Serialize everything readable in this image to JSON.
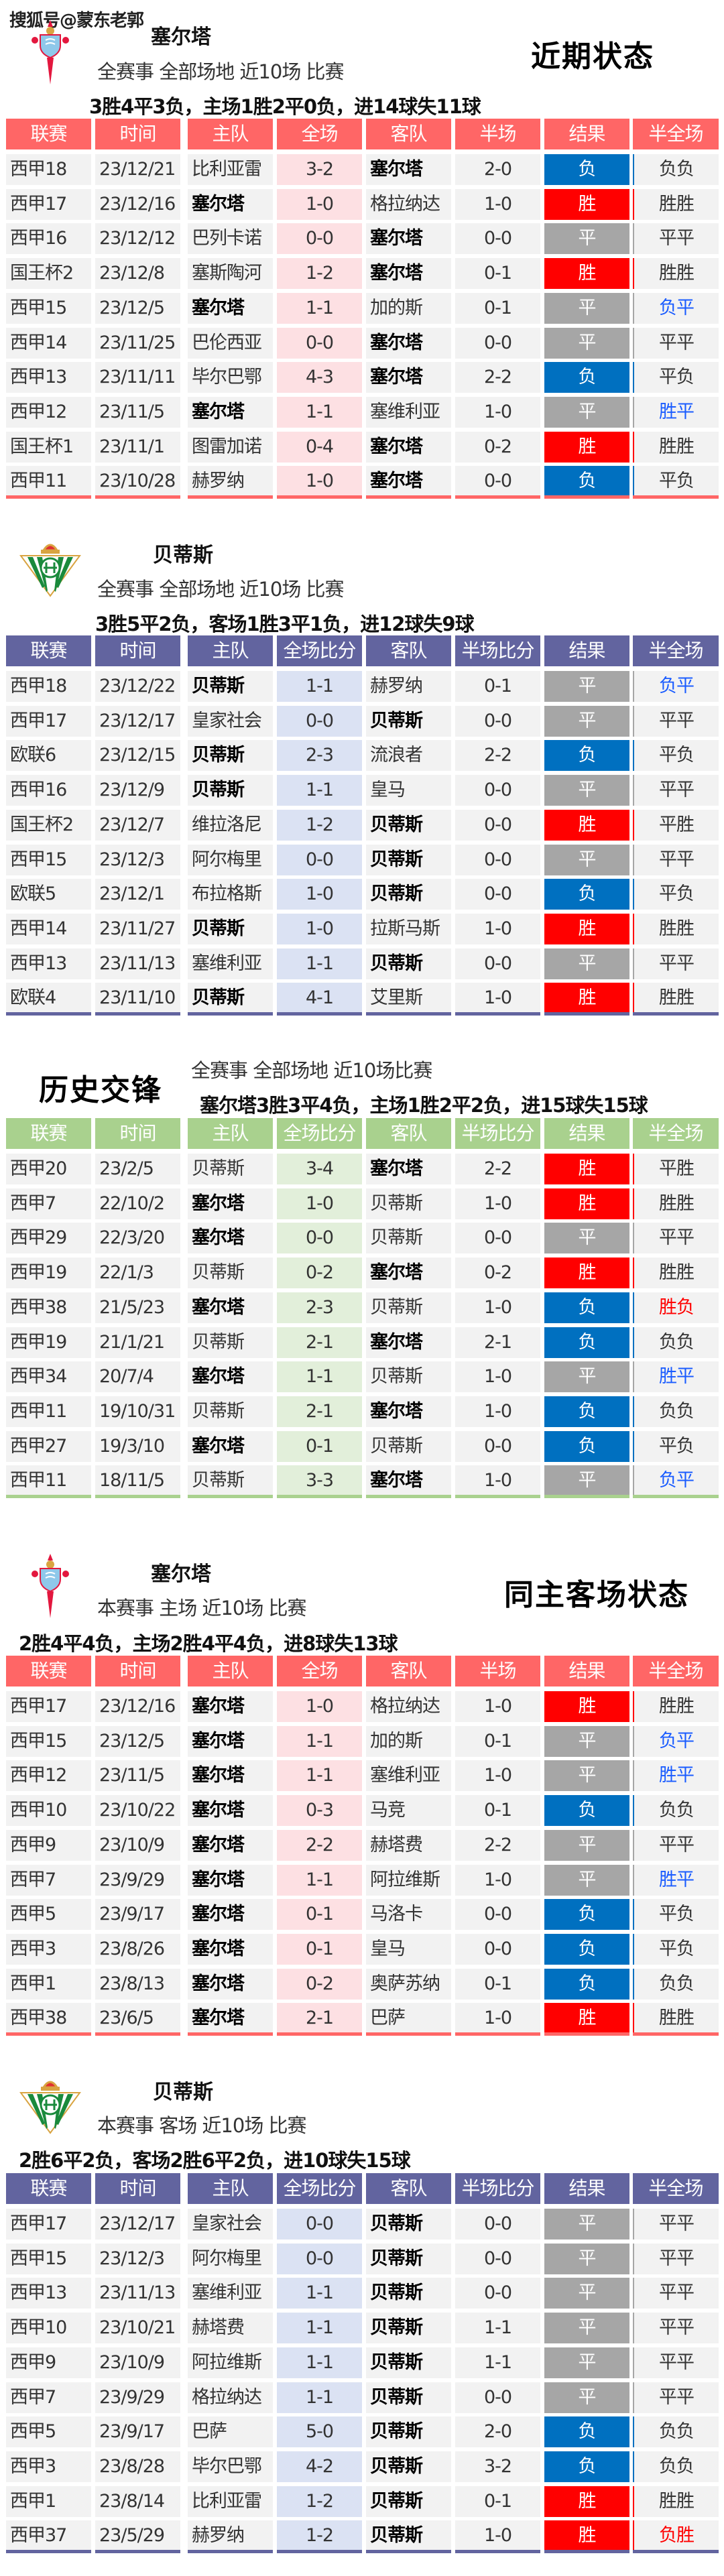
{
  "watermark": "搜狐号@蒙东老郭",
  "colors": {
    "celta_header": "#ff6666",
    "celta_score_bg": "#fde0e3",
    "betis_header": "#62649f",
    "betis_score_bg": "#dbe2f3",
    "h2h_header": "#a9d18e",
    "h2h_score_bg": "#e2efda",
    "win": "#ff0000",
    "draw": "#a6a6a6",
    "loss": "#0070c0",
    "hf_blue": "#1a5cff",
    "hf_red": "#ff0000",
    "cell_bg": "#f2f2f2"
  },
  "sections": [
    {
      "id": "celta-recent",
      "logo": "celta-crest",
      "team": "塞尔塔",
      "title": "近期状态",
      "subtitle": "全赛事  全部场地  近10场  比赛",
      "summary": "3胜4平3负，主场1胜2平0负，进14球失11球",
      "theme": "celta",
      "focus": "塞尔塔",
      "headers": [
        "联赛",
        "时间",
        "主队",
        "全场",
        "客队",
        "半场",
        "结果",
        "半全场"
      ],
      "rows": [
        [
          "西甲18",
          "23/12/21",
          "比利亚雷",
          "3-2",
          "塞尔塔",
          "2-0",
          "负",
          "负负"
        ],
        [
          "西甲17",
          "23/12/16",
          "塞尔塔",
          "1-0",
          "格拉纳达",
          "1-0",
          "胜",
          "胜胜"
        ],
        [
          "西甲16",
          "23/12/12",
          "巴列卡诺",
          "0-0",
          "塞尔塔",
          "0-0",
          "平",
          "平平"
        ],
        [
          "国王杯2",
          "23/12/8",
          "塞斯陶河",
          "1-2",
          "塞尔塔",
          "0-1",
          "胜",
          "胜胜"
        ],
        [
          "西甲15",
          "23/12/5",
          "塞尔塔",
          "1-1",
          "加的斯",
          "0-1",
          "平",
          "负平"
        ],
        [
          "西甲14",
          "23/11/25",
          "巴伦西亚",
          "0-0",
          "塞尔塔",
          "0-0",
          "平",
          "平平"
        ],
        [
          "西甲13",
          "23/11/11",
          "毕尔巴鄂",
          "4-3",
          "塞尔塔",
          "2-2",
          "负",
          "平负"
        ],
        [
          "西甲12",
          "23/11/5",
          "塞尔塔",
          "1-1",
          "塞维利亚",
          "1-0",
          "平",
          "胜平"
        ],
        [
          "国王杯1",
          "23/11/1",
          "图雷加诺",
          "0-4",
          "塞尔塔",
          "0-2",
          "胜",
          "胜胜"
        ],
        [
          "西甲11",
          "23/10/28",
          "赫罗纳",
          "1-0",
          "塞尔塔",
          "0-0",
          "负",
          "平负"
        ]
      ]
    },
    {
      "id": "betis-recent",
      "logo": "betis-crest",
      "team": "贝蒂斯",
      "title": "",
      "subtitle": "全赛事  全部场地  近10场  比赛",
      "summary": "3胜5平2负，客场1胜3平1负，进12球失9球",
      "theme": "betis",
      "focus": "贝蒂斯",
      "headers": [
        "联赛",
        "时间",
        "主队",
        "全场比分",
        "客队",
        "半场比分",
        "结果",
        "半全场"
      ],
      "rows": [
        [
          "西甲18",
          "23/12/22",
          "贝蒂斯",
          "1-1",
          "赫罗纳",
          "0-1",
          "平",
          "负平"
        ],
        [
          "西甲17",
          "23/12/17",
          "皇家社会",
          "0-0",
          "贝蒂斯",
          "0-0",
          "平",
          "平平"
        ],
        [
          "欧联6",
          "23/12/15",
          "贝蒂斯",
          "2-3",
          "流浪者",
          "2-2",
          "负",
          "平负"
        ],
        [
          "西甲16",
          "23/12/9",
          "贝蒂斯",
          "1-1",
          "皇马",
          "0-0",
          "平",
          "平平"
        ],
        [
          "国王杯2",
          "23/12/7",
          "维拉洛尼",
          "1-2",
          "贝蒂斯",
          "0-0",
          "胜",
          "平胜"
        ],
        [
          "西甲15",
          "23/12/3",
          "阿尔梅里",
          "0-0",
          "贝蒂斯",
          "0-0",
          "平",
          "平平"
        ],
        [
          "欧联5",
          "23/12/1",
          "布拉格斯",
          "1-0",
          "贝蒂斯",
          "0-0",
          "负",
          "平负"
        ],
        [
          "西甲14",
          "23/11/27",
          "贝蒂斯",
          "1-0",
          "拉斯马斯",
          "1-0",
          "胜",
          "胜胜"
        ],
        [
          "西甲13",
          "23/11/13",
          "塞维利亚",
          "1-1",
          "贝蒂斯",
          "0-0",
          "平",
          "平平"
        ],
        [
          "欧联4",
          "23/11/10",
          "贝蒂斯",
          "4-1",
          "艾里斯",
          "1-0",
          "胜",
          "胜胜"
        ]
      ]
    },
    {
      "id": "head-to-head",
      "logo": "",
      "team": "",
      "title": "历史交锋",
      "subtitle": "全赛事  全部场地  近10场比赛",
      "summary": "塞尔塔3胜3平4负，主场1胜2平2负，进15球失15球",
      "theme": "h2h",
      "focus": "塞尔塔",
      "headers": [
        "联赛",
        "时间",
        "主队",
        "全场比分",
        "客队",
        "半场比分",
        "结果",
        "半全场"
      ],
      "rows": [
        [
          "西甲20",
          "23/2/5",
          "贝蒂斯",
          "3-4",
          "塞尔塔",
          "2-2",
          "胜",
          "平胜"
        ],
        [
          "西甲7",
          "22/10/2",
          "塞尔塔",
          "1-0",
          "贝蒂斯",
          "1-0",
          "胜",
          "胜胜"
        ],
        [
          "西甲29",
          "22/3/20",
          "塞尔塔",
          "0-0",
          "贝蒂斯",
          "0-0",
          "平",
          "平平"
        ],
        [
          "西甲19",
          "22/1/3",
          "贝蒂斯",
          "0-2",
          "塞尔塔",
          "0-2",
          "胜",
          "胜胜"
        ],
        [
          "西甲38",
          "21/5/23",
          "塞尔塔",
          "2-3",
          "贝蒂斯",
          "1-0",
          "负",
          "胜负"
        ],
        [
          "西甲19",
          "21/1/21",
          "贝蒂斯",
          "2-1",
          "塞尔塔",
          "2-1",
          "负",
          "负负"
        ],
        [
          "西甲34",
          "20/7/4",
          "塞尔塔",
          "1-1",
          "贝蒂斯",
          "1-0",
          "平",
          "胜平"
        ],
        [
          "西甲11",
          "19/10/31",
          "贝蒂斯",
          "2-1",
          "塞尔塔",
          "1-0",
          "负",
          "负负"
        ],
        [
          "西甲27",
          "19/3/10",
          "塞尔塔",
          "0-1",
          "贝蒂斯",
          "0-0",
          "负",
          "平负"
        ],
        [
          "西甲11",
          "18/11/5",
          "贝蒂斯",
          "3-3",
          "塞尔塔",
          "1-0",
          "平",
          "负平"
        ]
      ]
    },
    {
      "id": "celta-home",
      "logo": "celta-crest",
      "team": "塞尔塔",
      "title": "同主客场状态",
      "subtitle": "本赛事  主场  近10场  比赛",
      "summary": "2胜4平4负，主场2胜4平4负，进8球失13球",
      "theme": "celta",
      "focus": "塞尔塔",
      "headers": [
        "联赛",
        "时间",
        "主队",
        "全场",
        "客队",
        "半场",
        "结果",
        "半全场"
      ],
      "rows": [
        [
          "西甲17",
          "23/12/16",
          "塞尔塔",
          "1-0",
          "格拉纳达",
          "1-0",
          "胜",
          "胜胜"
        ],
        [
          "西甲15",
          "23/12/5",
          "塞尔塔",
          "1-1",
          "加的斯",
          "0-1",
          "平",
          "负平"
        ],
        [
          "西甲12",
          "23/11/5",
          "塞尔塔",
          "1-1",
          "塞维利亚",
          "1-0",
          "平",
          "胜平"
        ],
        [
          "西甲10",
          "23/10/22",
          "塞尔塔",
          "0-3",
          "马竞",
          "0-1",
          "负",
          "负负"
        ],
        [
          "西甲9",
          "23/10/9",
          "塞尔塔",
          "2-2",
          "赫塔费",
          "2-2",
          "平",
          "平平"
        ],
        [
          "西甲7",
          "23/9/29",
          "塞尔塔",
          "1-1",
          "阿拉维斯",
          "1-0",
          "平",
          "胜平"
        ],
        [
          "西甲5",
          "23/9/17",
          "塞尔塔",
          "0-1",
          "马洛卡",
          "0-0",
          "负",
          "平负"
        ],
        [
          "西甲3",
          "23/8/26",
          "塞尔塔",
          "0-1",
          "皇马",
          "0-0",
          "负",
          "平负"
        ],
        [
          "西甲1",
          "23/8/13",
          "塞尔塔",
          "0-2",
          "奥萨苏纳",
          "0-1",
          "负",
          "负负"
        ],
        [
          "西甲38",
          "23/6/5",
          "塞尔塔",
          "2-1",
          "巴萨",
          "1-0",
          "胜",
          "胜胜"
        ]
      ]
    },
    {
      "id": "betis-away",
      "logo": "betis-crest",
      "team": "贝蒂斯",
      "title": "",
      "subtitle": "本赛事  客场  近10场  比赛",
      "summary": "2胜6平2负，客场2胜6平2负，进10球失15球",
      "theme": "betis",
      "focus": "贝蒂斯",
      "headers": [
        "联赛",
        "时间",
        "主队",
        "全场比分",
        "客队",
        "半场比分",
        "结果",
        "半全场"
      ],
      "rows": [
        [
          "西甲17",
          "23/12/17",
          "皇家社会",
          "0-0",
          "贝蒂斯",
          "0-0",
          "平",
          "平平"
        ],
        [
          "西甲15",
          "23/12/3",
          "阿尔梅里",
          "0-0",
          "贝蒂斯",
          "0-0",
          "平",
          "平平"
        ],
        [
          "西甲13",
          "23/11/13",
          "塞维利亚",
          "1-1",
          "贝蒂斯",
          "0-0",
          "平",
          "平平"
        ],
        [
          "西甲10",
          "23/10/21",
          "赫塔费",
          "1-1",
          "贝蒂斯",
          "1-1",
          "平",
          "平平"
        ],
        [
          "西甲9",
          "23/10/9",
          "阿拉维斯",
          "1-1",
          "贝蒂斯",
          "1-1",
          "平",
          "平平"
        ],
        [
          "西甲7",
          "23/9/29",
          "格拉纳达",
          "1-1",
          "贝蒂斯",
          "0-0",
          "平",
          "平平"
        ],
        [
          "西甲5",
          "23/9/17",
          "巴萨",
          "5-0",
          "贝蒂斯",
          "2-0",
          "负",
          "负负"
        ],
        [
          "西甲3",
          "23/8/28",
          "毕尔巴鄂",
          "4-2",
          "贝蒂斯",
          "3-2",
          "负",
          "负负"
        ],
        [
          "西甲1",
          "23/8/14",
          "比利亚雷",
          "1-2",
          "贝蒂斯",
          "0-1",
          "胜",
          "胜胜"
        ],
        [
          "西甲37",
          "23/5/29",
          "赫罗纳",
          "1-2",
          "贝蒂斯",
          "1-0",
          "胜",
          "负胜"
        ]
      ]
    }
  ]
}
